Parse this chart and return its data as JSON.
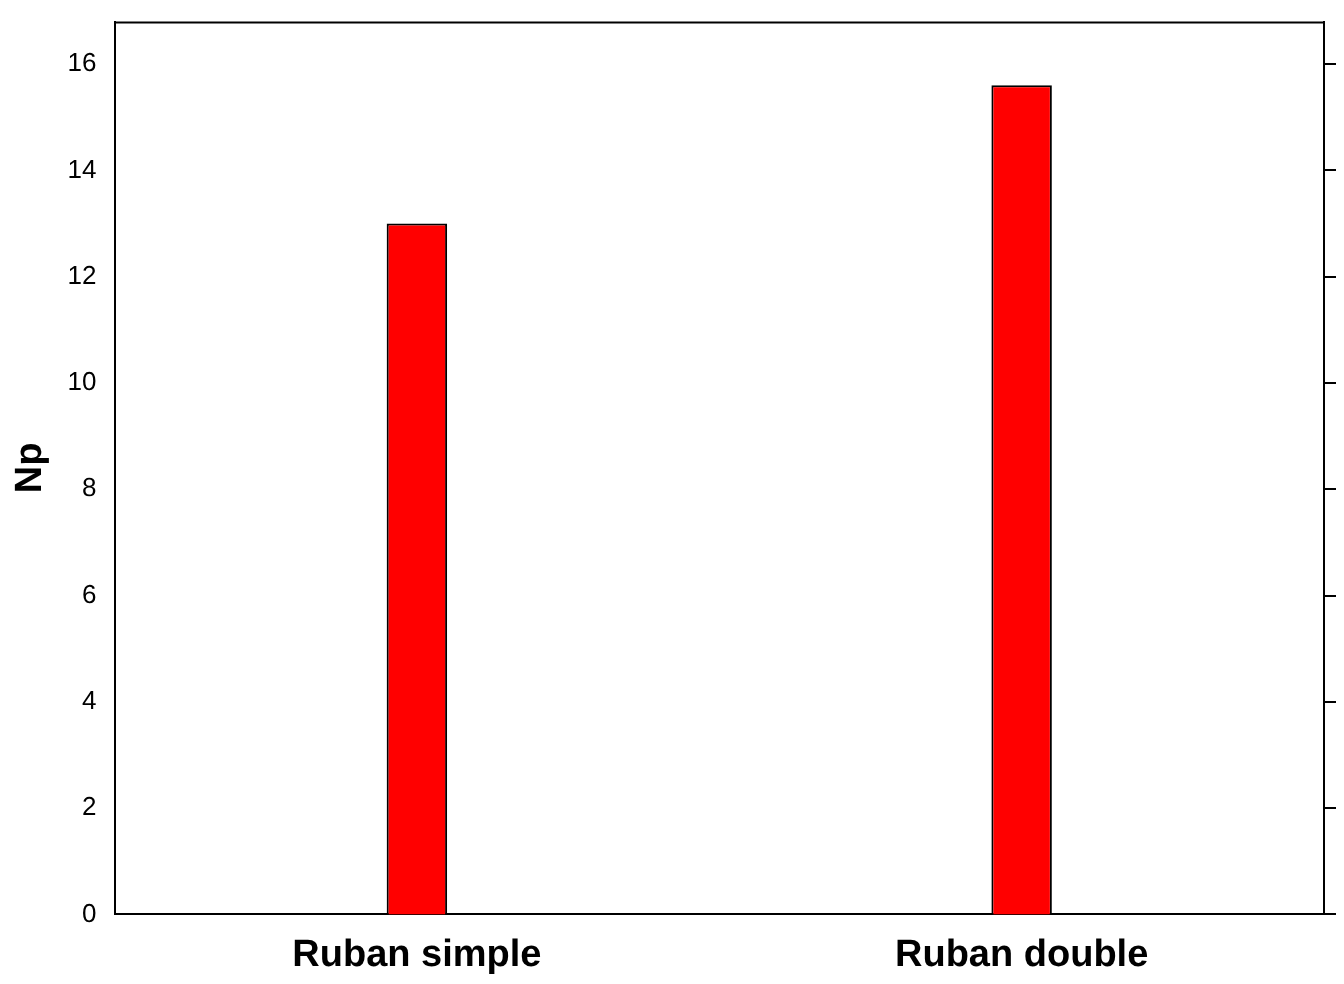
{
  "chart_data": {
    "type": "bar",
    "ylabel": "Np",
    "categories": [
      "Ruban simple",
      "Ruban double"
    ],
    "values": [
      13.0,
      15.6
    ],
    "color": "#ff0000",
    "ylim": [
      0,
      16.8
    ],
    "yticks": [
      0,
      2,
      4,
      6,
      8,
      10,
      12,
      14,
      16
    ],
    "grid": false,
    "legend": false
  }
}
